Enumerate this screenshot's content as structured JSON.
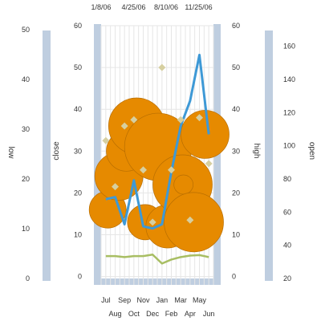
{
  "chart_data": {
    "type": "bubble-combo",
    "colors": {
      "bubble": "#E68A00",
      "bubble_stroke": "#B86E00",
      "close_line": "#3E99D6",
      "low_line": "#A8BE63",
      "marker": "#D6CFA0",
      "axis_band": "#BFCEE0",
      "grid": "#E6E6E6",
      "text": "#333333"
    },
    "axes": {
      "low": {
        "title": "low",
        "range": [
          0,
          50
        ],
        "ticks": [
          "0",
          "10",
          "20",
          "30",
          "40",
          "50"
        ]
      },
      "close": {
        "title": "close",
        "range": [
          -2,
          60
        ],
        "ticks": [
          "0",
          "10",
          "20",
          "30",
          "40",
          "50",
          "60"
        ]
      },
      "high": {
        "title": "high",
        "range": [
          -2,
          60
        ],
        "ticks": [
          "0",
          "10",
          "20",
          "30",
          "40",
          "50",
          "60"
        ]
      },
      "open": {
        "title": "open",
        "range": [
          20,
          170
        ],
        "ticks": [
          "20",
          "40",
          "60",
          "80",
          "100",
          "120",
          "140",
          "160"
        ]
      },
      "x_months_top_row": [
        "Jul",
        "Sep",
        "Nov",
        "Jan",
        "Mar",
        "May"
      ],
      "x_months_bottom_row": [
        "Aug",
        "Oct",
        "Dec",
        "Feb",
        "Apr",
        "Jun"
      ],
      "x_dates_top": [
        "1/8/06",
        "4/25/06",
        "8/10/06",
        "11/25/06"
      ]
    },
    "categories": [
      "Jul",
      "Aug",
      "Sep",
      "Oct",
      "Nov",
      "Dec",
      "Jan",
      "Feb",
      "Mar",
      "Apr",
      "May",
      "Jun"
    ],
    "series": [
      {
        "name": "close",
        "axis": "close",
        "type": "line",
        "values": [
          18.5,
          19,
          12.5,
          23,
          12,
          11.5,
          12.5,
          25,
          36,
          42,
          53,
          34
        ]
      },
      {
        "name": "low",
        "axis": "low",
        "type": "line",
        "values": [
          4.5,
          4.5,
          4.3,
          4.5,
          4.5,
          4.8,
          3.0,
          3.8,
          4.3,
          4.6,
          4.7,
          4.3
        ]
      },
      {
        "name": "high",
        "axis": "high",
        "type": "scatter",
        "values": [
          32.5,
          21.5,
          36,
          37.5,
          25.5,
          13,
          50,
          25.5,
          37.5,
          13.5,
          38,
          27
        ]
      },
      {
        "name": "open",
        "axis": "open",
        "type": "bubble",
        "points": [
          {
            "x": 0.2,
            "y": 16,
            "r": 23
          },
          {
            "x": 1.4,
            "y": 24,
            "r": 30
          },
          {
            "x": 2.2,
            "y": 30,
            "r": 25
          },
          {
            "x": 3.3,
            "y": 36,
            "r": 35
          },
          {
            "x": 4.2,
            "y": 13,
            "r": 22
          },
          {
            "x": 5.6,
            "y": 31,
            "r": 42
          },
          {
            "x": 5.4,
            "y": 12,
            "r": 11
          },
          {
            "x": 6.6,
            "y": 12,
            "r": 27
          },
          {
            "x": 8.2,
            "y": 22,
            "r": 37
          },
          {
            "x": 8.3,
            "y": 22,
            "r": 12
          },
          {
            "x": 9.4,
            "y": 13,
            "r": 37
          },
          {
            "x": 10.6,
            "y": 34,
            "r": 30
          }
        ]
      }
    ],
    "grid": true,
    "legend": "none"
  }
}
